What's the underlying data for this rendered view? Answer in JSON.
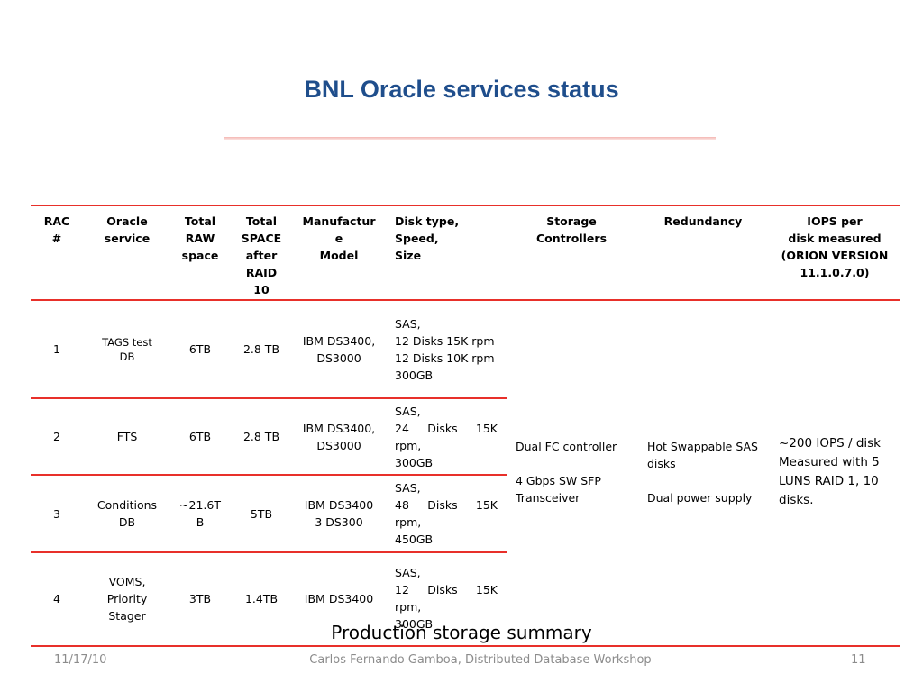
{
  "slide": {
    "title": "BNL Oracle services status",
    "caption": "Production storage summary"
  },
  "table": {
    "headers": {
      "rac": "RAC\n#",
      "service": "Oracle\nservice",
      "raw": "Total\nRAW\nspace",
      "after": "Total\nSPACE\nafter\nRAID\n10",
      "model": "Manufactur\ne\nModel",
      "disk": "Disk type,\nSpeed,\nSize",
      "controllers": "Storage\nControllers",
      "redundancy": "Redundancy",
      "iops": "IOPS per\ndisk measured\n(ORION VERSION\n11.1.0.7.0)"
    },
    "rows": [
      {
        "rac": "1",
        "service": "TAGS test\nDB",
        "raw": "6TB",
        "after": "2.8 TB",
        "model": "IBM DS3400,\nDS3000",
        "disk": "SAS,\n12 Disks 15K rpm\n12 Disks 10K rpm\n300GB"
      },
      {
        "rac": "2",
        "service": "FTS",
        "raw": "6TB",
        "after": "2.8 TB",
        "model": "IBM DS3400,\nDS3000",
        "disk": "SAS,\n24 Disks 15K rpm,\n300GB"
      },
      {
        "rac": "3",
        "service": "Conditions\nDB",
        "raw": "~21.6T\nB",
        "after": "5TB",
        "model": "IBM DS3400\n3 DS300",
        "disk": "SAS,\n48 Disks 15K rpm,\n450GB"
      },
      {
        "rac": "4",
        "service": "VOMS,\nPriority\nStager",
        "raw": "3TB",
        "after": "1.4TB",
        "model": "IBM DS3400",
        "disk": "SAS,\n12 Disks 15K rpm,\n300GB"
      }
    ],
    "shared": {
      "controllers": "Dual FC controller\n\n4 Gbps SW SFP\nTransceiver",
      "redundancy": "Hot Swappable SAS\ndisks\n\nDual power supply",
      "iops": "~200 IOPS / disk\nMeasured with 5\nLUNS RAID 1, 10\ndisks."
    }
  },
  "footer": {
    "date": "11/17/10",
    "center": "Carlos Fernando Gamboa, Distributed Database Workshop",
    "page": "11"
  },
  "colors": {
    "title": "#1F4E8C",
    "rule": "#E8302A",
    "footer": "#8c8c8c"
  }
}
